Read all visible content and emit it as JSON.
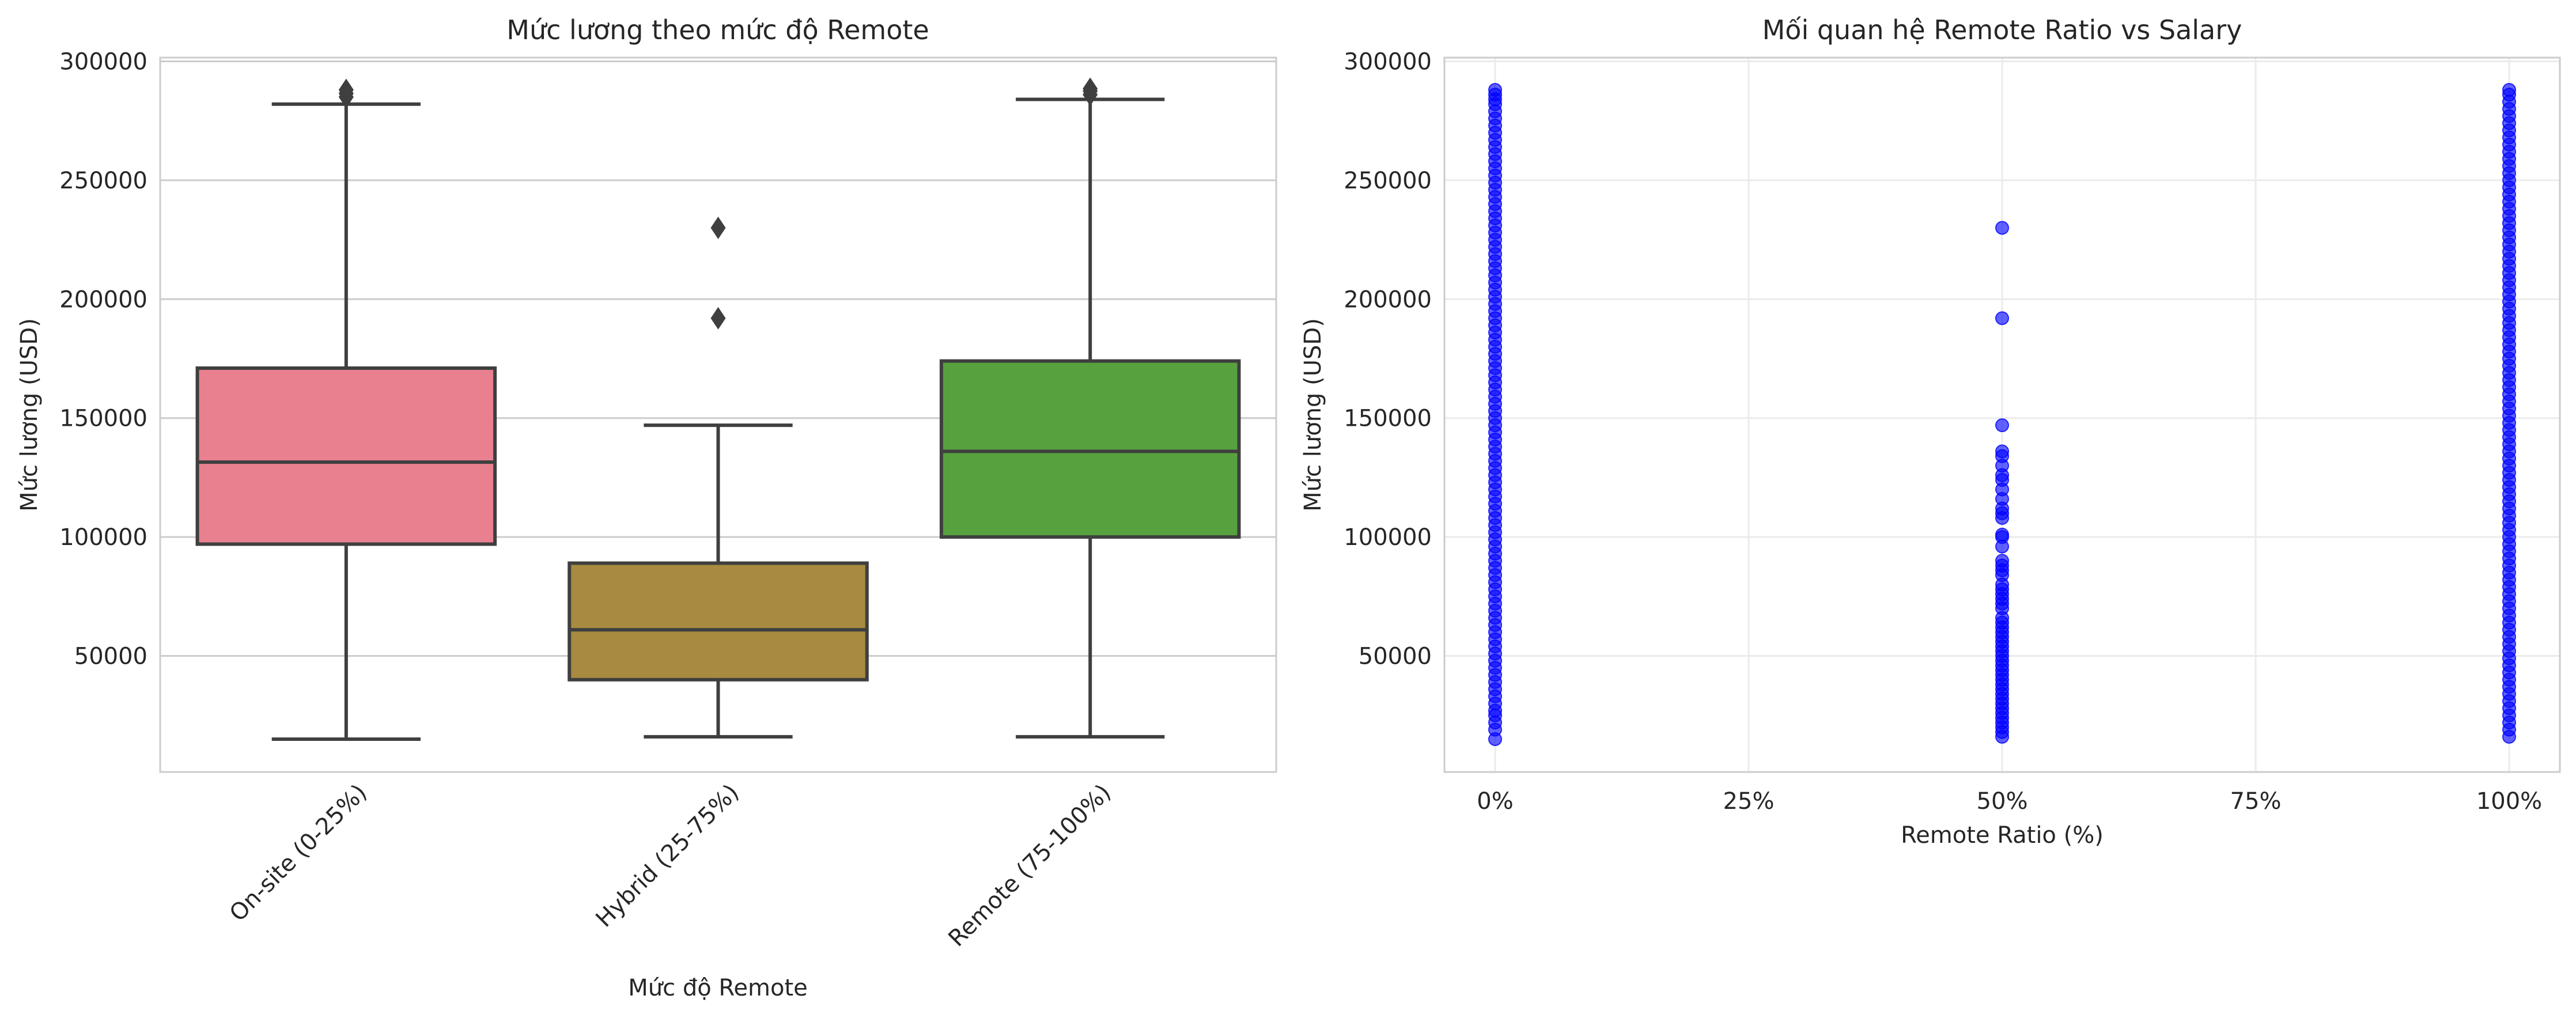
{
  "chart_data": [
    {
      "type": "box",
      "title": "Mức lương theo mức độ Remote",
      "xlabel": "Mức độ Remote",
      "ylabel": "Mức lương (USD)",
      "ylim": [
        0,
        300000
      ],
      "y_ticks": [
        "50000",
        "100000",
        "150000",
        "200000",
        "250000",
        "300000"
      ],
      "y_tick_values": [
        50000,
        100000,
        150000,
        200000,
        250000,
        300000
      ],
      "grid": true,
      "categories": [
        "On-site (0-25%)",
        "Hybrid (25-75%)",
        "Remote (75-100%)"
      ],
      "boxes": [
        {
          "category": "On-site (0-25%)",
          "color": "#e8808f",
          "min": 15000,
          "q1": 97000,
          "median": 131500,
          "q3": 171000,
          "max": 282000,
          "outliers": [
            285000,
            286500,
            288000
          ]
        },
        {
          "category": "Hybrid (25-75%)",
          "color": "#a88b40",
          "min": 16000,
          "q1": 40000,
          "median": 61000,
          "q3": 89000,
          "max": 147000,
          "outliers": [
            192000,
            230000
          ]
        },
        {
          "category": "Remote (75-100%)",
          "color": "#57a23f",
          "min": 16000,
          "q1": 100000,
          "median": 136000,
          "q3": 174000,
          "max": 284000,
          "outliers": [
            286000,
            287500,
            288500
          ]
        }
      ]
    },
    {
      "type": "scatter",
      "title": "Mối quan hệ Remote Ratio vs Salary",
      "xlabel": "Remote Ratio (%)",
      "ylabel": "Mức lương (USD)",
      "xlim": [
        -5,
        105
      ],
      "ylim": [
        0,
        300000
      ],
      "x_ticks": [
        "0%",
        "25%",
        "50%",
        "75%",
        "100%"
      ],
      "x_tick_values": [
        0,
        25,
        50,
        75,
        100
      ],
      "y_ticks": [
        "50000",
        "100000",
        "150000",
        "200000",
        "250000",
        "300000"
      ],
      "y_tick_values": [
        50000,
        100000,
        150000,
        200000,
        250000,
        300000
      ],
      "grid": true,
      "point_color": "#0000ff",
      "series": [
        {
          "x": 0,
          "y": [
            15000,
            19000,
            22000,
            25000,
            27000,
            30000,
            33000,
            36000,
            39000,
            42000,
            45000,
            48000,
            51000,
            54000,
            57000,
            60000,
            63000,
            66000,
            69000,
            72000,
            75000,
            78000,
            81000,
            84000,
            87000,
            90000,
            93000,
            96000,
            99000,
            102000,
            105000,
            108000,
            111000,
            114000,
            117000,
            120000,
            123000,
            126000,
            129000,
            132000,
            135000,
            138000,
            141000,
            144000,
            147000,
            150000,
            153000,
            156000,
            159000,
            162000,
            165000,
            168000,
            171000,
            174000,
            177000,
            180000,
            183000,
            186000,
            189000,
            192000,
            195000,
            198000,
            201000,
            204000,
            207000,
            210000,
            213000,
            216000,
            219000,
            222000,
            225000,
            228000,
            231000,
            234000,
            237000,
            240000,
            243000,
            246000,
            249000,
            252000,
            255000,
            258000,
            261000,
            264000,
            267000,
            270000,
            273000,
            276000,
            279000,
            282000,
            284000,
            286000,
            288000
          ]
        },
        {
          "x": 50,
          "y": [
            16000,
            18000,
            20000,
            22000,
            24000,
            26000,
            28000,
            30000,
            32000,
            34000,
            36000,
            38000,
            40000,
            42000,
            44000,
            46000,
            48000,
            50000,
            52000,
            54000,
            56000,
            58000,
            60000,
            62000,
            64000,
            66000,
            70000,
            72000,
            74000,
            76000,
            78000,
            80000,
            84000,
            86000,
            88000,
            90000,
            96000,
            100000,
            101000,
            108000,
            110000,
            112000,
            116000,
            120000,
            124000,
            126000,
            130000,
            134000,
            136000,
            147000,
            192000,
            230000
          ]
        },
        {
          "x": 100,
          "y": [
            16000,
            19000,
            22000,
            25000,
            28000,
            31000,
            34000,
            37000,
            40000,
            43000,
            46000,
            49000,
            52000,
            55000,
            58000,
            61000,
            64000,
            67000,
            70000,
            73000,
            76000,
            79000,
            82000,
            85000,
            88000,
            91000,
            94000,
            97000,
            100000,
            103000,
            106000,
            109000,
            112000,
            115000,
            118000,
            121000,
            124000,
            127000,
            130000,
            133000,
            136000,
            139000,
            142000,
            145000,
            148000,
            151000,
            154000,
            157000,
            160000,
            163000,
            166000,
            169000,
            172000,
            175000,
            178000,
            181000,
            184000,
            187000,
            190000,
            193000,
            196000,
            199000,
            202000,
            205000,
            208000,
            211000,
            214000,
            217000,
            220000,
            223000,
            226000,
            229000,
            232000,
            235000,
            238000,
            241000,
            244000,
            247000,
            250000,
            253000,
            256000,
            259000,
            262000,
            265000,
            268000,
            271000,
            274000,
            277000,
            280000,
            283000,
            286000,
            288000
          ]
        }
      ]
    }
  ]
}
